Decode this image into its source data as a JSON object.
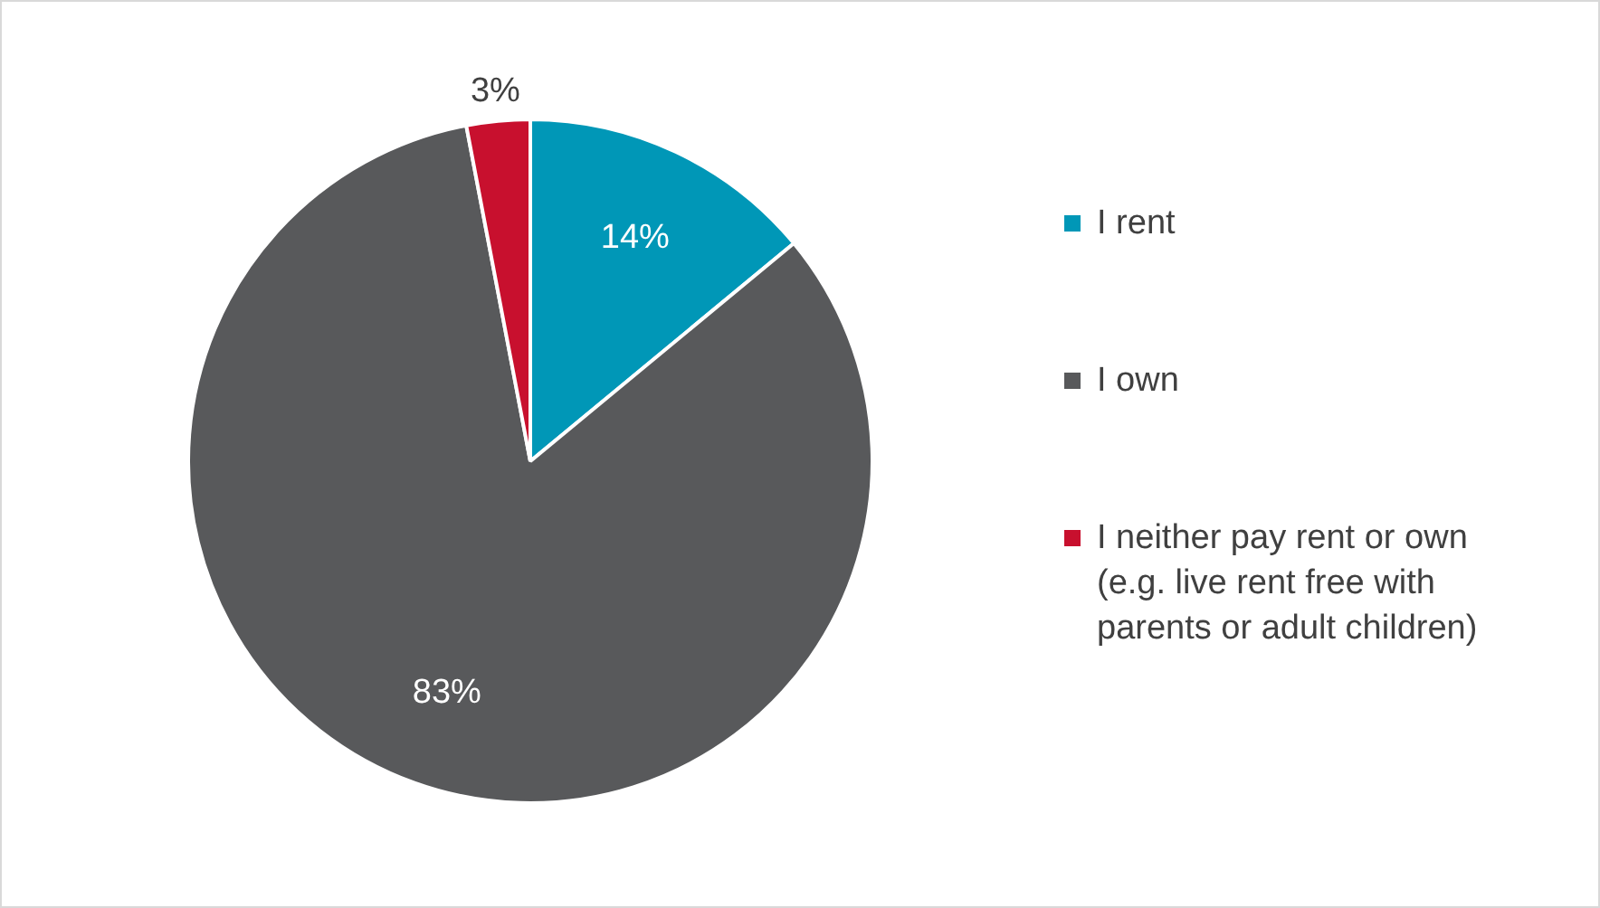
{
  "chart_data": {
    "type": "pie",
    "categories": [
      "I rent",
      "I own",
      "I neither pay rent or own (e.g. live rent free with parents or adult children)"
    ],
    "values": [
      14,
      83,
      3
    ],
    "colors": [
      "#0097b7",
      "#58595b",
      "#c8102e"
    ],
    "value_labels": [
      "14%",
      "83%",
      "3%"
    ],
    "legend": "right"
  }
}
